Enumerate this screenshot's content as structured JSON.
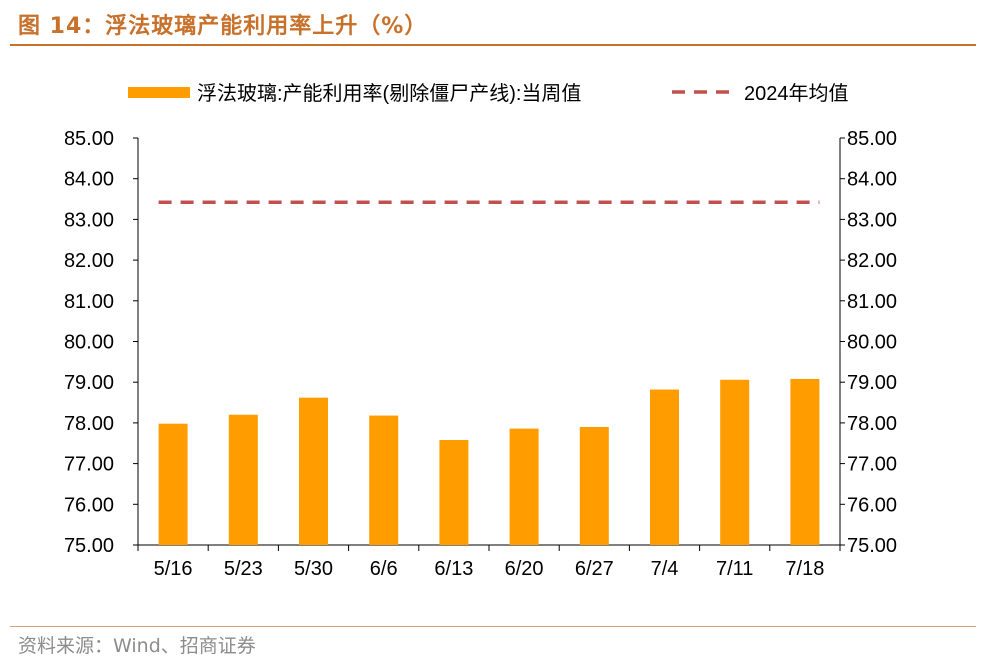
{
  "figure": {
    "title": "图 14：浮法玻璃产能利用率上升（%）",
    "source": "资料来源：Wind、招商证券"
  },
  "colors": {
    "accent": "#c8712b",
    "bar": "#ff9c00",
    "avg_line": "#c0504d",
    "axis": "#000000"
  },
  "chart_data": {
    "type": "bar",
    "title": "浮法玻璃产能利用率上升（%）",
    "categories": [
      "5/16",
      "5/23",
      "5/30",
      "6/6",
      "6/13",
      "6/20",
      "6/27",
      "7/4",
      "7/11",
      "7/18"
    ],
    "series": [
      {
        "name": "浮法玻璃:产能利用率(剔除僵尸产线):当周值",
        "type": "bar",
        "values": [
          77.98,
          78.2,
          78.62,
          78.18,
          77.58,
          77.86,
          77.9,
          78.82,
          79.06,
          79.08
        ]
      },
      {
        "name": "2024年均值",
        "type": "dashed-line",
        "values": [
          83.42,
          83.42,
          83.42,
          83.42,
          83.42,
          83.42,
          83.42,
          83.42,
          83.42,
          83.42
        ]
      }
    ],
    "ylim": [
      75,
      85
    ],
    "yticks": [
      "75.00",
      "76.00",
      "77.00",
      "78.00",
      "79.00",
      "80.00",
      "81.00",
      "82.00",
      "83.00",
      "84.00",
      "85.00"
    ],
    "secondary_yticks": [
      "75.00",
      "76.00",
      "77.00",
      "78.00",
      "79.00",
      "80.00",
      "81.00",
      "82.00",
      "83.00",
      "84.00",
      "85.00"
    ],
    "xlabel": "",
    "ylabel": "",
    "grid": false,
    "legend": "top"
  }
}
